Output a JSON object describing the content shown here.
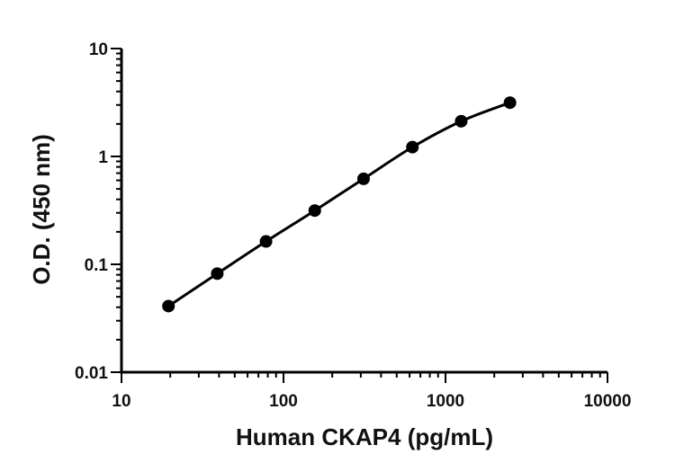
{
  "chart_data": {
    "type": "scatter",
    "title": "",
    "xlabel": "Human CKAP4 (pg/mL)",
    "ylabel": "O.D. (450 nm)",
    "xscale": "log",
    "yscale": "log",
    "xlim": [
      10,
      10000
    ],
    "ylim": [
      0.01,
      10
    ],
    "xticks": [
      "10",
      "100",
      "1000",
      "10000"
    ],
    "yticks": [
      "0.01",
      "0.1",
      "1",
      "10"
    ],
    "grid": false,
    "legend": "none",
    "fit_line": true,
    "series": [
      {
        "x": [
          19.5,
          39,
          78,
          156,
          312,
          625,
          1250,
          2500
        ],
        "y": [
          0.041,
          0.082,
          0.163,
          0.315,
          0.62,
          1.22,
          2.12,
          3.15
        ]
      }
    ]
  }
}
